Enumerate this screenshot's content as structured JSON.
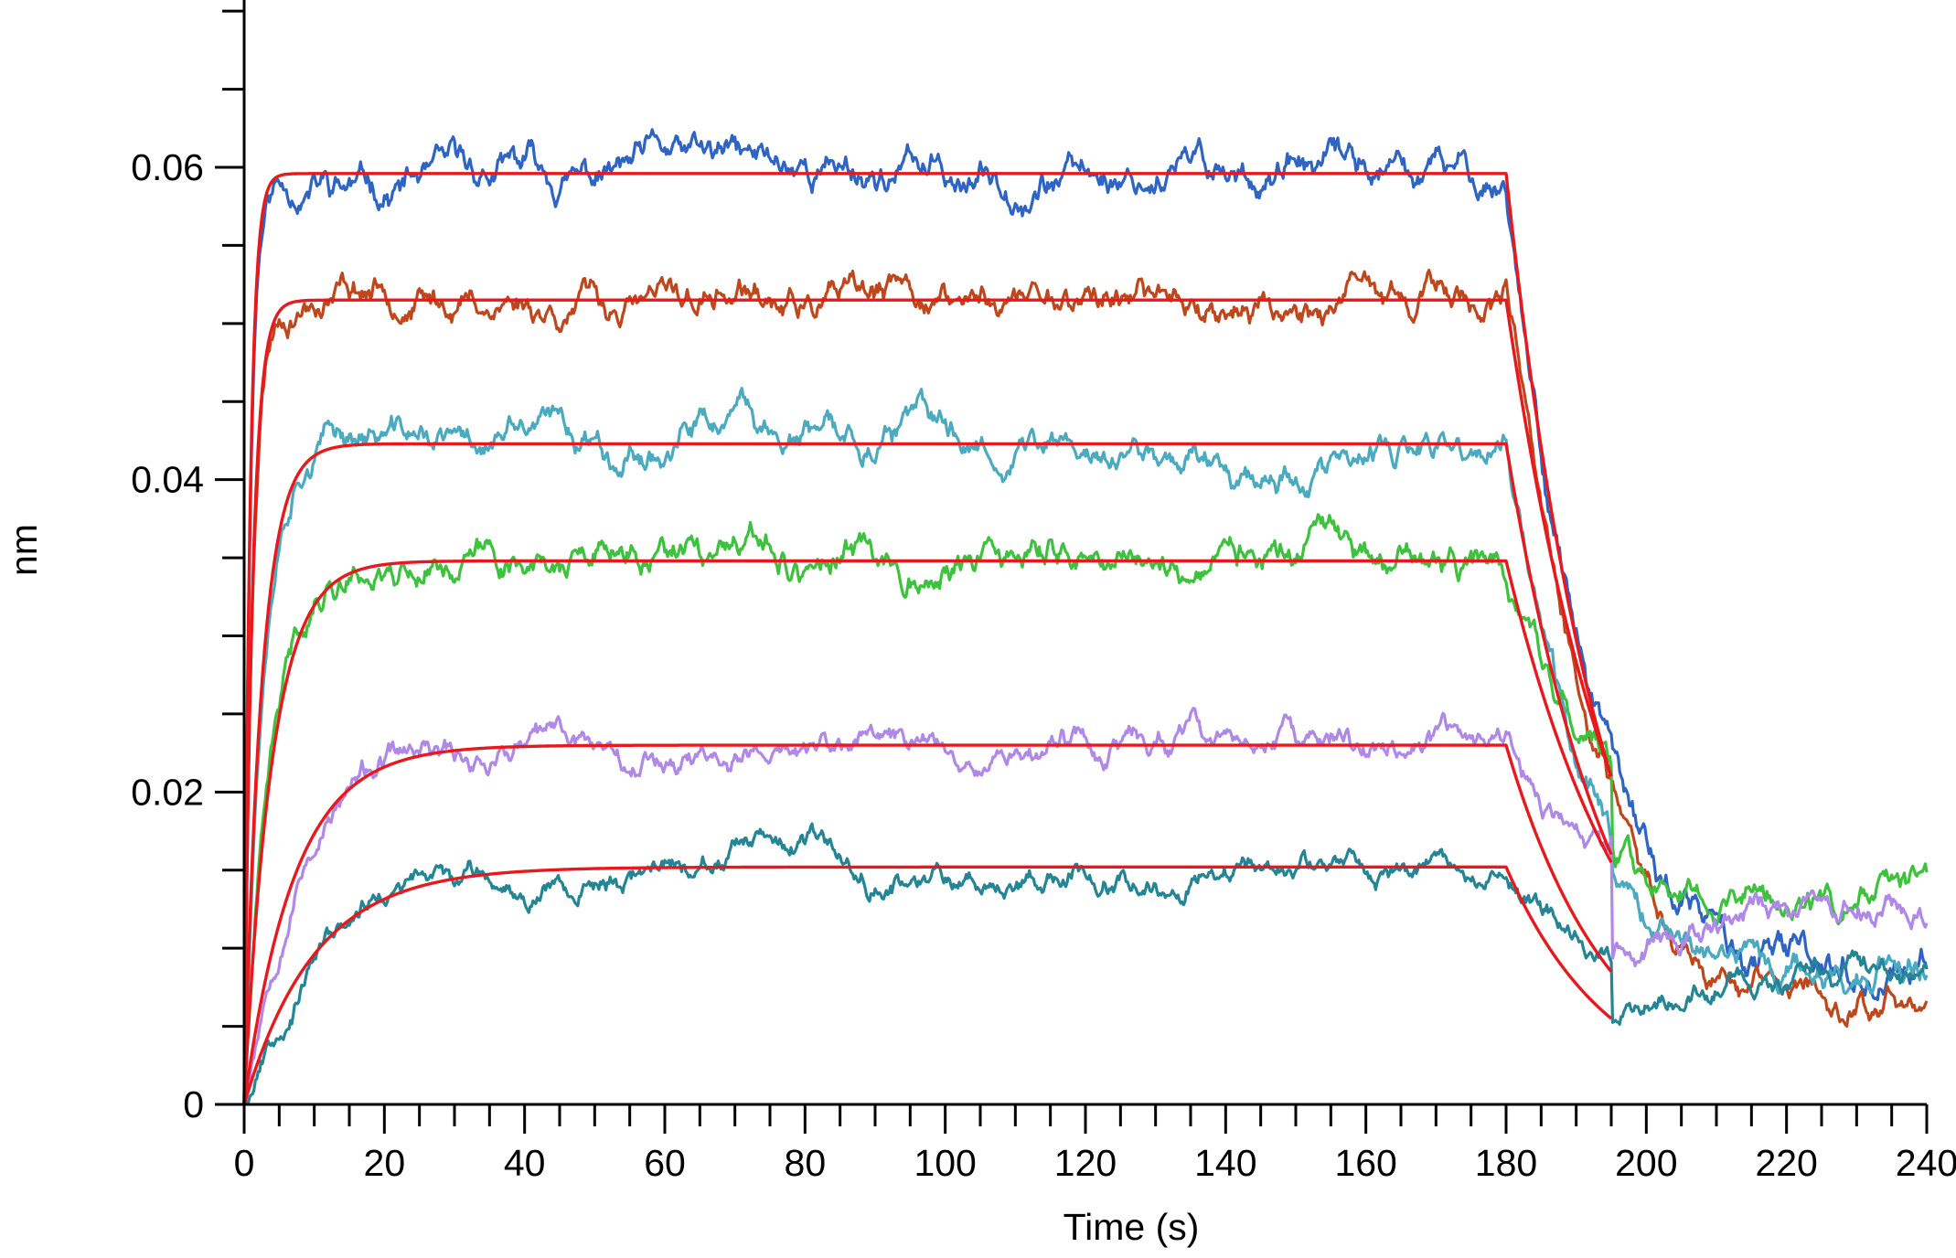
{
  "chart_data": {
    "type": "line",
    "title": "",
    "xlabel": "Time (s)",
    "ylabel": "nm",
    "xlim": [
      0,
      240
    ],
    "ylim": [
      0,
      0.07
    ],
    "x_ticks": [
      0,
      20,
      40,
      60,
      80,
      100,
      120,
      140,
      160,
      180,
      200,
      220,
      240
    ],
    "x_tick_labels": [
      "0",
      "20",
      "40",
      "60",
      "80",
      "100",
      "120",
      "140",
      "160",
      "180",
      "200",
      "220",
      "240"
    ],
    "y_ticks": [
      0,
      0.02,
      0.04,
      0.06
    ],
    "y_tick_labels": [
      "0",
      "0.02",
      "0.04",
      "0.06"
    ],
    "grid": false,
    "legend": "none",
    "association_end": 180,
    "fit_end": 195,
    "data_end": 240,
    "fit_color": "#e8191c",
    "series": [
      {
        "color": "#2e64c3",
        "plateau": 0.0596,
        "kobs": 1.2,
        "fit_end_value": 0.021,
        "dissoc_end_value": 0.0075,
        "noise": 0.0022,
        "seed": 11
      },
      {
        "color": "#c0461b",
        "plateau": 0.0515,
        "kobs": 0.85,
        "fit_end_value": 0.021,
        "dissoc_end_value": 0.006,
        "noise": 0.002,
        "seed": 23
      },
      {
        "color": "#4aaac0",
        "plateau": 0.0423,
        "kobs": 0.4,
        "fit_end_value": 0.016,
        "dissoc_end_value": 0.009,
        "noise": 0.002,
        "seed": 37
      },
      {
        "color": "#3cc23c",
        "plateau": 0.0348,
        "kobs": 0.25,
        "fit_end_value": 0.0155,
        "dissoc_end_value": 0.0135,
        "noise": 0.002,
        "seed": 41
      },
      {
        "color": "#b088e8",
        "plateau": 0.023,
        "kobs": 0.14,
        "fit_end_value": 0.0085,
        "dissoc_end_value": 0.014,
        "noise": 0.0017,
        "seed": 53
      },
      {
        "color": "#238595",
        "plateau": 0.0152,
        "kobs": 0.1,
        "fit_end_value": 0.0055,
        "dissoc_end_value": 0.008,
        "noise": 0.0015,
        "seed": 67
      }
    ]
  }
}
